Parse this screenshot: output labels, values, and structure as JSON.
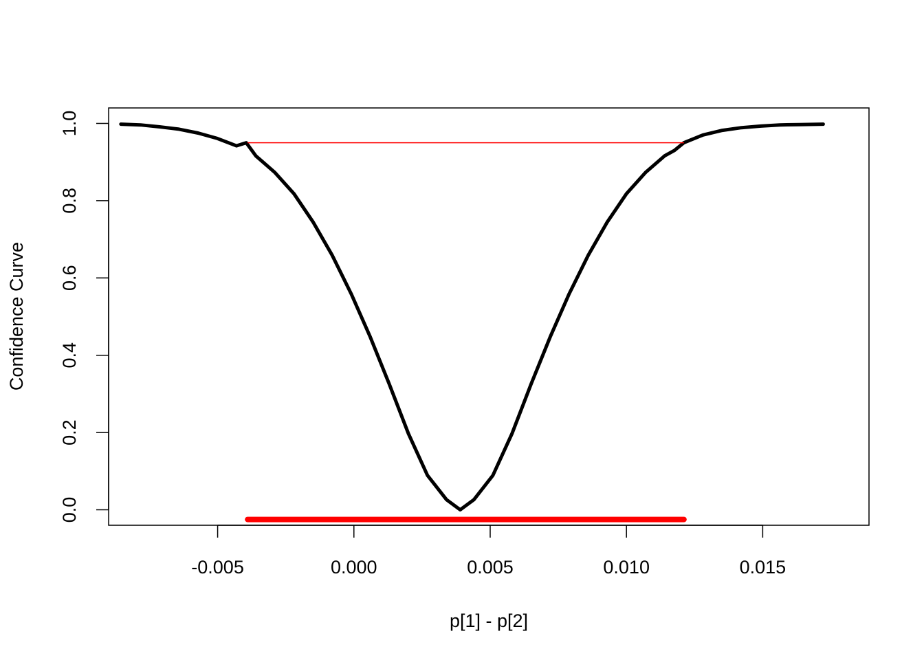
{
  "chart_data": {
    "type": "line",
    "title": "",
    "xlabel": "p[1] - p[2]",
    "ylabel": "Confidence Curve",
    "xlim": [
      -0.009,
      0.0189
    ],
    "ylim": [
      -0.04,
      1.04
    ],
    "x_ticks": [
      {
        "value": -0.005,
        "label": "-0.005"
      },
      {
        "value": 0.0,
        "label": "0.000"
      },
      {
        "value": 0.005,
        "label": "0.005"
      },
      {
        "value": 0.01,
        "label": "0.010"
      },
      {
        "value": 0.015,
        "label": "0.015"
      }
    ],
    "y_ticks": [
      {
        "value": 0.0,
        "label": "0.0"
      },
      {
        "value": 0.2,
        "label": "0.2"
      },
      {
        "value": 0.4,
        "label": "0.4"
      },
      {
        "value": 0.6,
        "label": "0.6"
      },
      {
        "value": 0.8,
        "label": "0.8"
      },
      {
        "value": 1.0,
        "label": "1.0"
      }
    ],
    "grid": false,
    "legend": "none",
    "series": [
      {
        "color": "#000000",
        "x": [
          -0.00855,
          -0.00783,
          -0.00713,
          -0.00642,
          -0.00572,
          -0.00501,
          -0.00431,
          -0.00395,
          -0.0036,
          -0.0029,
          -0.0022,
          -0.0015,
          -0.0008,
          -0.0001,
          0.0006,
          0.0013,
          0.002,
          0.0027,
          0.0034,
          0.0039,
          0.0044,
          0.0051,
          0.0058,
          0.0065,
          0.0072,
          0.0079,
          0.0086,
          0.0093,
          0.01,
          0.0107,
          0.0114,
          0.01176,
          0.01211,
          0.01281,
          0.01352,
          0.01422,
          0.01493,
          0.01563,
          0.01634,
          0.01722
        ],
        "y": [
          0.998,
          0.996,
          0.991,
          0.985,
          0.975,
          0.961,
          0.942,
          0.95,
          0.916,
          0.873,
          0.818,
          0.745,
          0.659,
          0.559,
          0.447,
          0.325,
          0.197,
          0.089,
          0.026,
          0.0,
          0.026,
          0.089,
          0.197,
          0.325,
          0.447,
          0.559,
          0.659,
          0.745,
          0.818,
          0.873,
          0.916,
          0.93,
          0.95,
          0.97,
          0.982,
          0.989,
          0.993,
          0.996,
          0.997,
          0.998
        ]
      }
    ],
    "annotations": [
      {
        "type": "hline-segment",
        "color": "#ff0000",
        "y": 0.95,
        "x_from": -0.0039,
        "x_to": 0.01211
      },
      {
        "type": "interval-bar",
        "color": "#ff0000",
        "y": -0.025,
        "x_from": -0.0039,
        "x_to": 0.01211
      }
    ]
  }
}
